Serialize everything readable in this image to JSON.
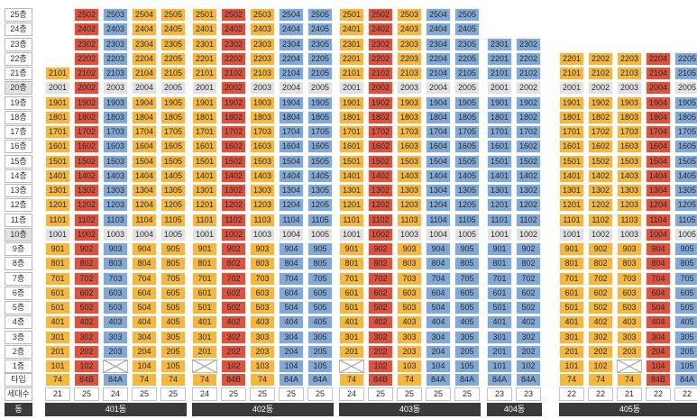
{
  "floors": [
    {
      "label": "25층",
      "hl": false
    },
    {
      "label": "24층",
      "hl": false
    },
    {
      "label": "23층",
      "hl": false
    },
    {
      "label": "22층",
      "hl": false
    },
    {
      "label": "21층",
      "hl": false
    },
    {
      "label": "20층",
      "hl": true
    },
    {
      "label": "19층",
      "hl": false
    },
    {
      "label": "18층",
      "hl": false
    },
    {
      "label": "17층",
      "hl": false
    },
    {
      "label": "16층",
      "hl": false
    },
    {
      "label": "15층",
      "hl": false
    },
    {
      "label": "14층",
      "hl": false
    },
    {
      "label": "13층",
      "hl": false
    },
    {
      "label": "12층",
      "hl": false
    },
    {
      "label": "11층",
      "hl": false
    },
    {
      "label": "10층",
      "hl": true
    },
    {
      "label": "9층",
      "hl": false
    },
    {
      "label": "8층",
      "hl": false
    },
    {
      "label": "7층",
      "hl": false
    },
    {
      "label": "6층",
      "hl": false
    },
    {
      "label": "5층",
      "hl": false
    },
    {
      "label": "4층",
      "hl": false
    },
    {
      "label": "3층",
      "hl": false
    },
    {
      "label": "2층",
      "hl": false
    },
    {
      "label": "1층",
      "hl": false
    }
  ],
  "row_labels": {
    "type": "타입",
    "households": "세대수",
    "building": "동"
  },
  "colors": {
    "74": "#f4b842",
    "84A": "#82a8d6",
    "84B": "#d9533f",
    "highlight_floor": "#e2e2e2",
    "footer_bar": "#3a3a3a"
  },
  "buildings": [
    {
      "name": "401동",
      "columns": [
        {
          "line": 1,
          "type": "74",
          "households": "21",
          "top_floor": 21,
          "bottom_floor": 1,
          "missing": []
        },
        {
          "line": 2,
          "type": "84B",
          "households": "25",
          "top_floor": 25,
          "bottom_floor": 1,
          "missing": []
        },
        {
          "line": 3,
          "type": "84A",
          "households": "24",
          "top_floor": 25,
          "bottom_floor": 1,
          "missing": [
            1
          ]
        },
        {
          "line": 4,
          "type": "74",
          "households": "25",
          "top_floor": 25,
          "bottom_floor": 1,
          "missing": []
        },
        {
          "line": 5,
          "type": "74",
          "households": "25",
          "top_floor": 25,
          "bottom_floor": 1,
          "missing": []
        }
      ]
    },
    {
      "name": "402동",
      "columns": [
        {
          "line": 1,
          "type": "74",
          "households": "24",
          "top_floor": 25,
          "bottom_floor": 1,
          "missing": [
            1
          ]
        },
        {
          "line": 2,
          "type": "84B",
          "households": "25",
          "top_floor": 25,
          "bottom_floor": 1,
          "missing": []
        },
        {
          "line": 3,
          "type": "74",
          "households": "25",
          "top_floor": 25,
          "bottom_floor": 1,
          "missing": []
        },
        {
          "line": 4,
          "type": "84A",
          "households": "25",
          "top_floor": 25,
          "bottom_floor": 1,
          "missing": []
        },
        {
          "line": 5,
          "type": "84A",
          "households": "25",
          "top_floor": 25,
          "bottom_floor": 1,
          "missing": []
        }
      ]
    },
    {
      "name": "403동",
      "columns": [
        {
          "line": 1,
          "type": "74",
          "households": "24",
          "top_floor": 25,
          "bottom_floor": 1,
          "missing": [
            1
          ]
        },
        {
          "line": 2,
          "type": "84B",
          "households": "25",
          "top_floor": 25,
          "bottom_floor": 1,
          "missing": []
        },
        {
          "line": 3,
          "type": "74",
          "households": "25",
          "top_floor": 25,
          "bottom_floor": 1,
          "missing": []
        },
        {
          "line": 4,
          "type": "84A",
          "households": "25",
          "top_floor": 25,
          "bottom_floor": 1,
          "missing": []
        },
        {
          "line": 5,
          "type": "84A",
          "households": "25",
          "top_floor": 25,
          "bottom_floor": 1,
          "missing": []
        }
      ]
    },
    {
      "name": "404동",
      "columns": [
        {
          "line": 1,
          "type": "84A",
          "households": "23",
          "top_floor": 23,
          "bottom_floor": 1,
          "missing": []
        },
        {
          "line": 2,
          "type": "84A",
          "households": "23",
          "top_floor": 23,
          "bottom_floor": 1,
          "missing": []
        }
      ]
    },
    {
      "name": "405동",
      "columns": [
        {
          "line": 1,
          "type": "74",
          "households": "22",
          "top_floor": 22,
          "bottom_floor": 1,
          "missing": []
        },
        {
          "line": 2,
          "type": "74",
          "households": "22",
          "top_floor": 22,
          "bottom_floor": 1,
          "missing": []
        },
        {
          "line": 3,
          "type": "74",
          "households": "21",
          "top_floor": 22,
          "bottom_floor": 1,
          "missing": [
            1
          ]
        },
        {
          "line": 4,
          "type": "84B",
          "households": "22",
          "top_floor": 22,
          "bottom_floor": 1,
          "missing": []
        },
        {
          "line": 5,
          "type": "84A",
          "households": "22",
          "top_floor": 22,
          "bottom_floor": 1,
          "missing": []
        }
      ]
    }
  ]
}
